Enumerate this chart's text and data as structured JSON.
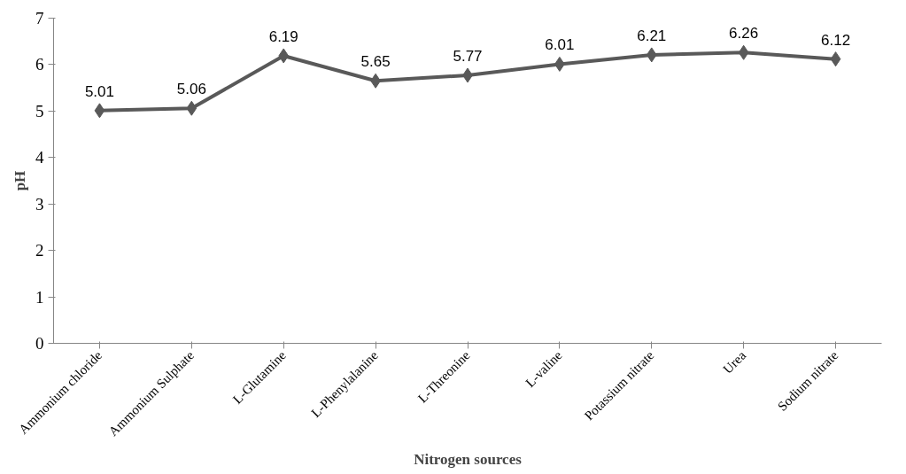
{
  "chart_data": {
    "type": "line",
    "xlabel": "Nitrogen sources",
    "ylabel": "pH",
    "categories": [
      "Ammonium chloride",
      "Ammonium Sulphate",
      "L-Glutamine",
      "L-Phenylalanine",
      "L-Threonine",
      "L-valine",
      "Potassium nitrate",
      "Urea",
      "Sodium nitrate"
    ],
    "values": [
      5.01,
      5.06,
      6.19,
      5.65,
      5.77,
      6.01,
      6.21,
      6.26,
      6.12
    ],
    "color": "#595959",
    "marker": "diamond",
    "data_labels": true,
    "grid": false,
    "ylim": [
      0,
      7
    ],
    "yticks": [
      0,
      1,
      2,
      3,
      4,
      5,
      6,
      7
    ]
  }
}
